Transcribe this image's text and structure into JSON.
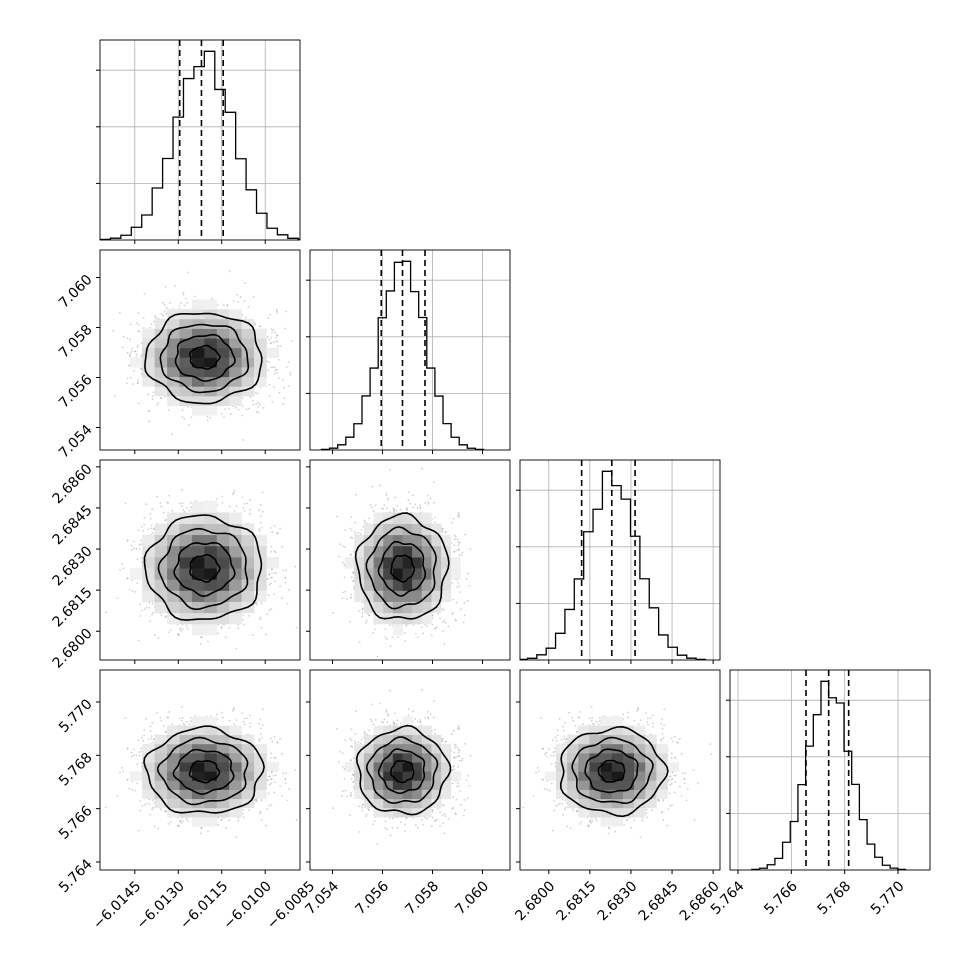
{
  "chart_data": {
    "type": "corner",
    "parameters": 4,
    "contour_levels": [
      0.118,
      0.393,
      0.675,
      0.865
    ],
    "histogram_bins": 20,
    "grid": true,
    "params": [
      {
        "index": 0,
        "range": [
          -6.0157,
          -6.0088
        ],
        "ticks": [
          -6.0145,
          -6.013,
          -6.0115,
          -6.01,
          -6.0085
        ],
        "tick_labels": [
          "−6.0145",
          "−6.0130",
          "−6.0115",
          "−6.0100",
          "−6.0085"
        ],
        "mean": -6.0121,
        "sigma": 0.001,
        "quantiles": [
          -6.01295,
          -6.0122,
          -6.01145
        ]
      },
      {
        "index": 1,
        "range": [
          7.0531,
          7.0611
        ],
        "ticks": [
          7.054,
          7.056,
          7.058,
          7.06
        ],
        "tick_labels": [
          "7.054",
          "7.056",
          "7.058",
          "7.060"
        ],
        "mean": 7.0568,
        "sigma": 0.0009,
        "quantiles": [
          7.05595,
          7.0568,
          7.0577
        ]
      },
      {
        "index": 2,
        "range": [
          2.67895,
          2.68625
        ],
        "ticks": [
          2.68,
          2.6815,
          2.683,
          2.6845,
          2.686
        ],
        "tick_labels": [
          "2.6800",
          "2.6815",
          "2.6830",
          "2.6845",
          "2.6860"
        ],
        "mean": 2.6823,
        "sigma": 0.00095,
        "quantiles": [
          2.6812,
          2.6823,
          2.68315
        ]
      },
      {
        "index": 3,
        "range": [
          5.7637,
          5.7712
        ],
        "ticks": [
          5.764,
          5.766,
          5.768,
          5.77
        ],
        "tick_labels": [
          "5.764",
          "5.766",
          "5.768",
          "5.770"
        ],
        "mean": 5.7674,
        "sigma": 0.0008,
        "quantiles": [
          5.76655,
          5.7674,
          5.76815
        ]
      }
    ]
  }
}
